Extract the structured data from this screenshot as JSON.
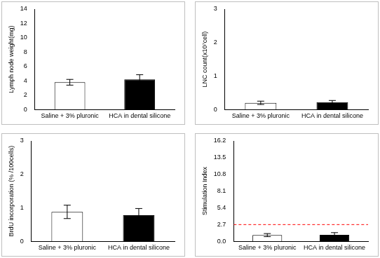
{
  "chart_data": [
    {
      "type": "bar",
      "y_label": "Lymph node weight(mg)",
      "categories": [
        "Saline + 3% pluronic",
        "HCA in dental silicone"
      ],
      "values": [
        3.8,
        4.2
      ],
      "errors": [
        0.4,
        0.65
      ],
      "colors": [
        "#ffffff",
        "#000000"
      ],
      "ylim": [
        0,
        14
      ],
      "yticks": [
        0,
        2,
        4,
        6,
        8,
        10,
        12,
        14
      ],
      "grid": false
    },
    {
      "type": "bar",
      "y_label": "LNC count(x10⁷cell)",
      "categories": [
        "Saline + 3% pluronic",
        "HCA in dental silicone"
      ],
      "values": [
        0.2,
        0.22
      ],
      "errors": [
        0.05,
        0.05
      ],
      "colors": [
        "#ffffff",
        "#000000"
      ],
      "ylim": [
        0,
        3
      ],
      "yticks": [
        0,
        1,
        2,
        3
      ],
      "grid": false
    },
    {
      "type": "bar",
      "y_label": "BrdU incorporation (% /100cells)",
      "categories": [
        "Saline + 3% pluronic",
        "HCA in dental silicone"
      ],
      "values": [
        0.88,
        0.78
      ],
      "errors": [
        0.2,
        0.2
      ],
      "colors": [
        "#ffffff",
        "#000000"
      ],
      "ylim": [
        0,
        3
      ],
      "yticks": [
        0,
        1,
        2,
        3
      ],
      "grid": false
    },
    {
      "type": "bar",
      "y_label": "Stimulation Index",
      "categories": [
        "Saline + 3% pluronic",
        "HCA in dental silicone"
      ],
      "values": [
        1.0,
        1.05
      ],
      "errors": [
        0.25,
        0.35
      ],
      "colors": [
        "#ffffff",
        "#000000"
      ],
      "threshold": 2.7,
      "ylim": [
        0,
        16.2
      ],
      "yticks": [
        {
          "value": 0,
          "label": "0.0"
        },
        2.7,
        5.4,
        8.1,
        10.8,
        13.5,
        16.2
      ],
      "grid": false
    }
  ]
}
